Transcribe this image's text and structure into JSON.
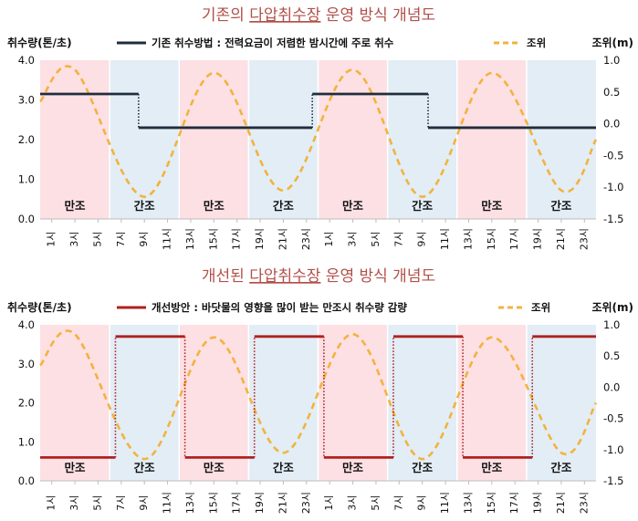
{
  "chart_data": [
    {
      "type": "line",
      "title_prefix": "기존의 ",
      "title_underlined": "다압취수장",
      "title_suffix": " 운영 방식 개념도",
      "ylabel_left": "취수량(톤/초)",
      "ylabel_right": "조위(m)",
      "ylim_left": [
        0,
        4
      ],
      "ylim_right": [
        -1.5,
        1
      ],
      "yticks_left": [
        "0.0",
        "1.0",
        "2.0",
        "3.0",
        "4.0"
      ],
      "yticks_right": [
        "-1.5",
        "-1.0",
        "-0.5",
        "0.0",
        "0.5",
        "1.0"
      ],
      "x_labels": [
        "1시",
        "3시",
        "5시",
        "7시",
        "9시",
        "11시",
        "13시",
        "15시",
        "17시",
        "19시",
        "21시",
        "23시",
        "1시",
        "3시",
        "5시",
        "7시",
        "9시",
        "11시",
        "13시",
        "15시",
        "17시",
        "19시",
        "21시",
        "23시"
      ],
      "bands": [
        {
          "label": "만조",
          "start": 0,
          "end": 6,
          "color": "#fde0e4"
        },
        {
          "label": "간조",
          "start": 6,
          "end": 12,
          "color": "#e2edf6"
        },
        {
          "label": "만조",
          "start": 12,
          "end": 18,
          "color": "#fde0e4"
        },
        {
          "label": "간조",
          "start": 18,
          "end": 24,
          "color": "#e2edf6"
        },
        {
          "label": "만조",
          "start": 24,
          "end": 30,
          "color": "#fde0e4"
        },
        {
          "label": "간조",
          "start": 30,
          "end": 36,
          "color": "#e2edf6"
        },
        {
          "label": "만조",
          "start": 36,
          "end": 42,
          "color": "#fde0e4"
        },
        {
          "label": "간조",
          "start": 42,
          "end": 48,
          "color": "#e2edf6"
        }
      ],
      "series": [
        {
          "name": "기존 취수방법 : 전력요금이 저렴한 밤시간에 주로 취수",
          "axis": "left",
          "style": "step",
          "color": "#1f2d3d",
          "segments": [
            [
              0,
              8.5,
              3.15
            ],
            [
              8.5,
              23.5,
              2.3
            ],
            [
              23.5,
              33.5,
              3.15
            ],
            [
              33.5,
              48,
              2.3
            ]
          ]
        },
        {
          "name": "조위",
          "axis": "right",
          "style": "dashed",
          "color": "#f2b33d",
          "points": [
            [
              0,
              0.35
            ],
            [
              3,
              0.85
            ],
            [
              9,
              -1.15
            ],
            [
              15,
              0.8
            ],
            [
              21,
              -1.05
            ],
            [
              27,
              0.85
            ],
            [
              33,
              -1.15
            ],
            [
              39,
              0.8
            ],
            [
              45,
              -1.05
            ],
            [
              48,
              -0.25
            ]
          ]
        }
      ],
      "legend_position": "top"
    },
    {
      "type": "line",
      "title_prefix": "개선된 ",
      "title_underlined": "다압취수장",
      "title_suffix": " 운영 방식 개념도",
      "ylabel_left": "취수량(톤/초)",
      "ylabel_right": "조위(m)",
      "ylim_left": [
        0,
        4
      ],
      "ylim_right": [
        -1.5,
        1
      ],
      "yticks_left": [
        "0.0",
        "1.0",
        "2.0",
        "3.0",
        "4.0"
      ],
      "yticks_right": [
        "-1.5",
        "-1.0",
        "-0.5",
        "0.0",
        "0.5",
        "1.0"
      ],
      "x_labels": [
        "1시",
        "3시",
        "5시",
        "7시",
        "9시",
        "11시",
        "13시",
        "15시",
        "17시",
        "19시",
        "21시",
        "23시",
        "1시",
        "3시",
        "5시",
        "7시",
        "9시",
        "11시",
        "13시",
        "15시",
        "17시",
        "19시",
        "21시",
        "23시"
      ],
      "bands": [
        {
          "label": "만조",
          "start": 0,
          "end": 6,
          "color": "#fde0e4"
        },
        {
          "label": "간조",
          "start": 6,
          "end": 12,
          "color": "#e2edf6"
        },
        {
          "label": "만조",
          "start": 12,
          "end": 18,
          "color": "#fde0e4"
        },
        {
          "label": "간조",
          "start": 18,
          "end": 24,
          "color": "#e2edf6"
        },
        {
          "label": "만조",
          "start": 24,
          "end": 30,
          "color": "#fde0e4"
        },
        {
          "label": "간조",
          "start": 30,
          "end": 36,
          "color": "#e2edf6"
        },
        {
          "label": "만조",
          "start": 36,
          "end": 42,
          "color": "#fde0e4"
        },
        {
          "label": "간조",
          "start": 42,
          "end": 48,
          "color": "#e2edf6"
        }
      ],
      "series": [
        {
          "name": "개선방안 : 바닷물의 영향을 많이 받는 만조시 취수량 감량",
          "axis": "left",
          "style": "step",
          "color": "#b0201f",
          "segments": [
            [
              0,
              6.5,
              0.6
            ],
            [
              6.5,
              12.5,
              3.7
            ],
            [
              12.5,
              18.5,
              0.6
            ],
            [
              18.5,
              24.5,
              3.7
            ],
            [
              24.5,
              30.5,
              0.6
            ],
            [
              30.5,
              36.5,
              3.7
            ],
            [
              36.5,
              42.5,
              0.6
            ],
            [
              42.5,
              48,
              3.7
            ]
          ]
        },
        {
          "name": "조위",
          "axis": "right",
          "style": "dashed",
          "color": "#f2b33d",
          "points": [
            [
              0,
              0.35
            ],
            [
              3,
              0.85
            ],
            [
              9,
              -1.15
            ],
            [
              15,
              0.8
            ],
            [
              21,
              -1.05
            ],
            [
              27,
              0.85
            ],
            [
              33,
              -1.15
            ],
            [
              39,
              0.8
            ],
            [
              45,
              -1.05
            ],
            [
              48,
              -0.25
            ]
          ]
        }
      ],
      "legend_position": "top"
    }
  ]
}
